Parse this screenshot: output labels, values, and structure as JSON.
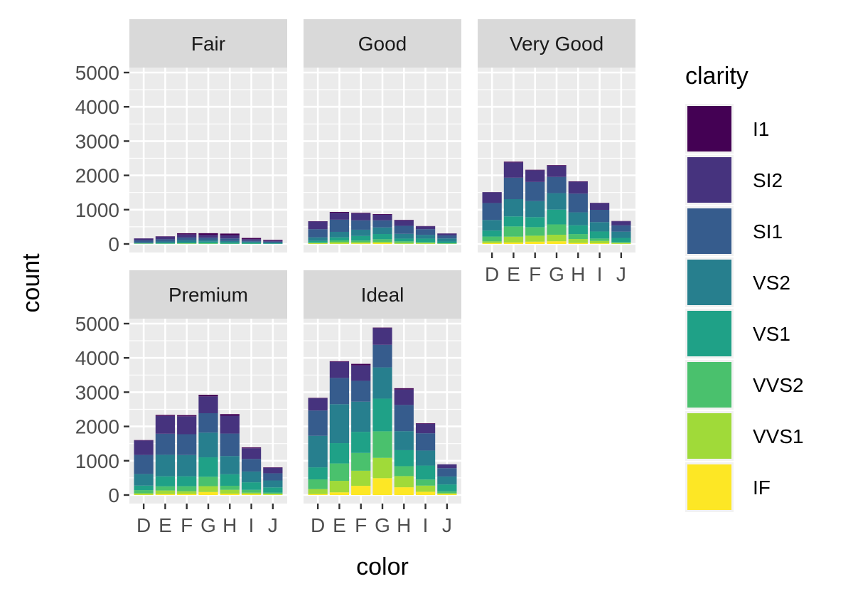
{
  "chart_data": {
    "type": "bar",
    "stacked": true,
    "faceted": true,
    "xlabel": "color",
    "ylabel": "count",
    "ylim": [
      0,
      5000
    ],
    "y_ticks": [
      0,
      1000,
      2000,
      3000,
      4000,
      5000
    ],
    "categories": [
      "D",
      "E",
      "F",
      "G",
      "H",
      "I",
      "J"
    ],
    "grid": true,
    "legend": {
      "title": "clarity",
      "position": "right",
      "entries": [
        {
          "name": "I1",
          "color": "#440154"
        },
        {
          "name": "SI2",
          "color": "#46337e"
        },
        {
          "name": "SI1",
          "color": "#365c8d"
        },
        {
          "name": "VS2",
          "color": "#277f8e"
        },
        {
          "name": "VS1",
          "color": "#1fa187"
        },
        {
          "name": "VVS2",
          "color": "#4ac16d"
        },
        {
          "name": "VVS1",
          "color": "#a0da39"
        },
        {
          "name": "IF",
          "color": "#fde725"
        }
      ]
    },
    "facets": [
      {
        "name": "Fair",
        "series": [
          {
            "name": "I1",
            "values": [
              4,
              9,
              35,
              53,
              52,
              34,
              23
            ]
          },
          {
            "name": "SI2",
            "values": [
              56,
              78,
              89,
              80,
              91,
              45,
              27
            ]
          },
          {
            "name": "SI1",
            "values": [
              58,
              65,
              83,
              69,
              75,
              30,
              28
            ]
          },
          {
            "name": "VS2",
            "values": [
              25,
              42,
              53,
              45,
              41,
              32,
              23
            ]
          },
          {
            "name": "VS1",
            "values": [
              5,
              14,
              33,
              45,
              32,
              25,
              16
            ]
          },
          {
            "name": "VVS2",
            "values": [
              9,
              13,
              10,
              17,
              11,
              8,
              1
            ]
          },
          {
            "name": "VVS1",
            "values": [
              3,
              3,
              5,
              3,
              1,
              1,
              1
            ]
          },
          {
            "name": "IF",
            "values": [
              3,
              0,
              4,
              2,
              0,
              0,
              0
            ]
          }
        ]
      },
      {
        "name": "Good",
        "series": [
          {
            "name": "I1",
            "values": [
              8,
              23,
              19,
              19,
              14,
              9,
              4
            ]
          },
          {
            "name": "SI2",
            "values": [
              223,
              202,
              201,
              163,
              158,
              81,
              53
            ]
          },
          {
            "name": "SI1",
            "values": [
              237,
              355,
              273,
              207,
              235,
              165,
              88
            ]
          },
          {
            "name": "VS2",
            "values": [
              104,
              160,
              184,
              192,
              138,
              110,
              90
            ]
          },
          {
            "name": "VS1",
            "values": [
              43,
              89,
              132,
              152,
              77,
              103,
              52
            ]
          },
          {
            "name": "VVS2",
            "values": [
              25,
              52,
              50,
              75,
              45,
              26,
              13
            ]
          },
          {
            "name": "VVS1",
            "values": [
              13,
              43,
              35,
              41,
              31,
              22,
              1
            ]
          },
          {
            "name": "IF",
            "values": [
              9,
              9,
              15,
              22,
              4,
              6,
              6
            ]
          }
        ]
      },
      {
        "name": "Very Good",
        "series": [
          {
            "name": "I1",
            "values": [
              5,
              22,
              13,
              16,
              12,
              8,
              8
            ]
          },
          {
            "name": "SI2",
            "values": [
              314,
              445,
              343,
              327,
              345,
              195,
              119
            ]
          },
          {
            "name": "SI1",
            "values": [
              494,
              626,
              559,
              474,
              547,
              358,
              182
            ]
          },
          {
            "name": "VS2",
            "values": [
              309,
              503,
              466,
              479,
              376,
              274,
              184
            ]
          },
          {
            "name": "VS1",
            "values": [
              175,
              293,
              293,
              432,
              257,
              205,
              120
            ]
          },
          {
            "name": "VVS2",
            "values": [
              141,
              298,
              249,
              302,
              145,
              71,
              29
            ]
          },
          {
            "name": "VVS1",
            "values": [
              52,
              170,
              174,
              190,
              115,
              69,
              19
            ]
          },
          {
            "name": "IF",
            "values": [
              23,
              43,
              67,
              79,
              29,
              19,
              8
            ]
          }
        ]
      },
      {
        "name": "Premium",
        "series": [
          {
            "name": "I1",
            "values": [
              12,
              30,
              34,
              46,
              46,
              24,
              13
            ]
          },
          {
            "name": "SI2",
            "values": [
              421,
              519,
              523,
              492,
              521,
              312,
              161
            ]
          },
          {
            "name": "SI1",
            "values": [
              556,
              614,
              608,
              566,
              655,
              367,
              209
            ]
          },
          {
            "name": "VS2",
            "values": [
              339,
              629,
              619,
              721,
              532,
              315,
              202
            ]
          },
          {
            "name": "VS1",
            "values": [
              131,
              292,
              290,
              566,
              336,
              221,
              153
            ]
          },
          {
            "name": "VVS2",
            "values": [
              94,
              121,
              146,
              275,
              118,
              82,
              34
            ]
          },
          {
            "name": "VVS1",
            "values": [
              40,
              105,
              80,
              171,
              112,
              45,
              24
            ]
          },
          {
            "name": "IF",
            "values": [
              10,
              27,
              31,
              87,
              40,
              23,
              12
            ]
          }
        ]
      },
      {
        "name": "Ideal",
        "series": [
          {
            "name": "I1",
            "values": [
              13,
              18,
              42,
              16,
              38,
              17,
              2
            ]
          },
          {
            "name": "SI2",
            "values": [
              356,
              469,
              453,
              486,
              450,
              274,
              110
            ]
          },
          {
            "name": "SI1",
            "values": [
              738,
              766,
              608,
              660,
              763,
              504,
              243
            ]
          },
          {
            "name": "VS2",
            "values": [
              920,
              1136,
              879,
              910,
              556,
              438,
              232
            ]
          },
          {
            "name": "VS1",
            "values": [
              351,
              593,
              616,
              953,
              467,
              408,
              201
            ]
          },
          {
            "name": "VVS2",
            "values": [
              284,
              507,
              520,
              774,
              289,
              178,
              54
            ]
          },
          {
            "name": "VVS1",
            "values": [
              144,
              335,
              440,
              594,
              326,
              179,
              29
            ]
          },
          {
            "name": "IF",
            "values": [
              28,
              79,
              268,
              491,
              226,
              95,
              25
            ]
          }
        ]
      }
    ]
  }
}
